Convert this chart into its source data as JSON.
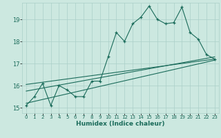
{
  "xlabel": "Humidex (Indice chaleur)",
  "bg_color": "#cce8e0",
  "grid_color": "#aacfc8",
  "line_color": "#1a6b5a",
  "xlim": [
    -0.5,
    23.5
  ],
  "ylim": [
    14.75,
    19.75
  ],
  "xticks": [
    0,
    1,
    2,
    3,
    4,
    5,
    6,
    7,
    8,
    9,
    10,
    11,
    12,
    13,
    14,
    15,
    16,
    17,
    18,
    19,
    20,
    21,
    22,
    23
  ],
  "yticks": [
    15,
    16,
    17,
    18,
    19
  ],
  "main_line_x": [
    0,
    1,
    2,
    3,
    4,
    5,
    6,
    7,
    8,
    9,
    10,
    11,
    12,
    13,
    14,
    15,
    16,
    17,
    18,
    19,
    20,
    21,
    22,
    23
  ],
  "main_line_y": [
    15.1,
    15.5,
    16.1,
    15.1,
    16.0,
    15.8,
    15.5,
    15.5,
    16.2,
    16.2,
    17.3,
    18.4,
    18.0,
    18.8,
    19.1,
    19.6,
    19.0,
    18.8,
    18.85,
    19.55,
    18.4,
    18.1,
    17.4,
    17.2
  ],
  "reg_line1_x": [
    0,
    23
  ],
  "reg_line1_y": [
    16.05,
    17.2
  ],
  "reg_line2_x": [
    0,
    23
  ],
  "reg_line2_y": [
    15.75,
    17.3
  ],
  "reg_line3_x": [
    0,
    23
  ],
  "reg_line3_y": [
    15.2,
    17.15
  ]
}
